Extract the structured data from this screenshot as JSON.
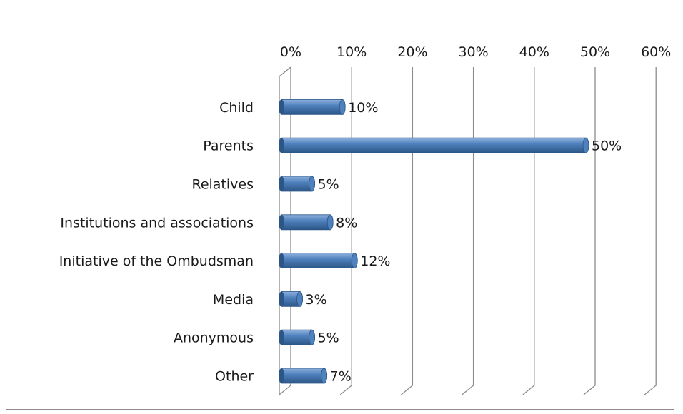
{
  "chart_data": {
    "type": "bar",
    "orientation": "horizontal",
    "style": "3d-cylinder",
    "title": "",
    "xlabel": "",
    "ylabel": "",
    "xlim": [
      0,
      60
    ],
    "tick_values": [
      0,
      10,
      20,
      30,
      40,
      50,
      60
    ],
    "tick_labels": [
      "0%",
      "10%",
      "20%",
      "30%",
      "40%",
      "50%",
      "60%"
    ],
    "axis_position": "top",
    "grid": true,
    "legend": "none",
    "categories": [
      "Child",
      "Parents",
      "Relatives",
      "Institutions and associations",
      "Initiative of the Ombudsman",
      "Media",
      "Anonymous",
      "Other"
    ],
    "values": [
      10,
      50,
      5,
      8,
      12,
      3,
      5,
      7
    ],
    "data_labels": [
      "10%",
      "50%",
      "5%",
      "8%",
      "12%",
      "3%",
      "5%",
      "7%"
    ],
    "colors": {
      "bar": "#4f81bd",
      "bar_dark": "#2c5687",
      "bar_light": "#8fb1dc",
      "grid": "#8c8c8c",
      "text": "#1a1a1a"
    }
  }
}
